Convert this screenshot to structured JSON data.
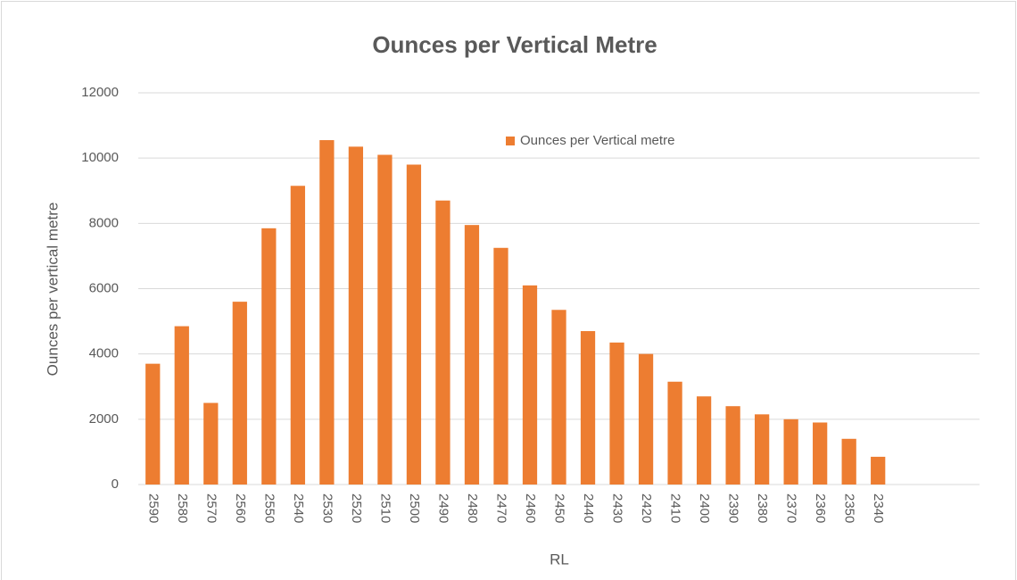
{
  "chart_data": {
    "type": "bar",
    "title": "Ounces per Vertical Metre",
    "x_label": "RL",
    "y_label": "Ounces per vertical metre",
    "categories": [
      "2590",
      "2580",
      "2570",
      "2560",
      "2550",
      "2540",
      "2530",
      "2520",
      "2510",
      "2500",
      "2490",
      "2480",
      "2470",
      "2460",
      "2450",
      "2440",
      "2430",
      "2420",
      "2410",
      "2400",
      "2390",
      "2380",
      "2370",
      "2360",
      "2350",
      "2340",
      null,
      null,
      null
    ],
    "series": [
      {
        "name": "Ounces per Vertical metre",
        "color": "#ed7d31",
        "values": [
          3700,
          4850,
          2500,
          5600,
          7850,
          9150,
          10550,
          10350,
          10100,
          9800,
          8700,
          7950,
          7250,
          6100,
          5350,
          4700,
          4350,
          4000,
          3150,
          2700,
          2400,
          2150,
          2000,
          1900,
          1400,
          850,
          null,
          null,
          null
        ]
      }
    ],
    "ylim": [
      0,
      12000
    ],
    "yticks": [
      0,
      2000,
      4000,
      6000,
      8000,
      10000,
      12000
    ],
    "grid": true,
    "legend": "top"
  }
}
